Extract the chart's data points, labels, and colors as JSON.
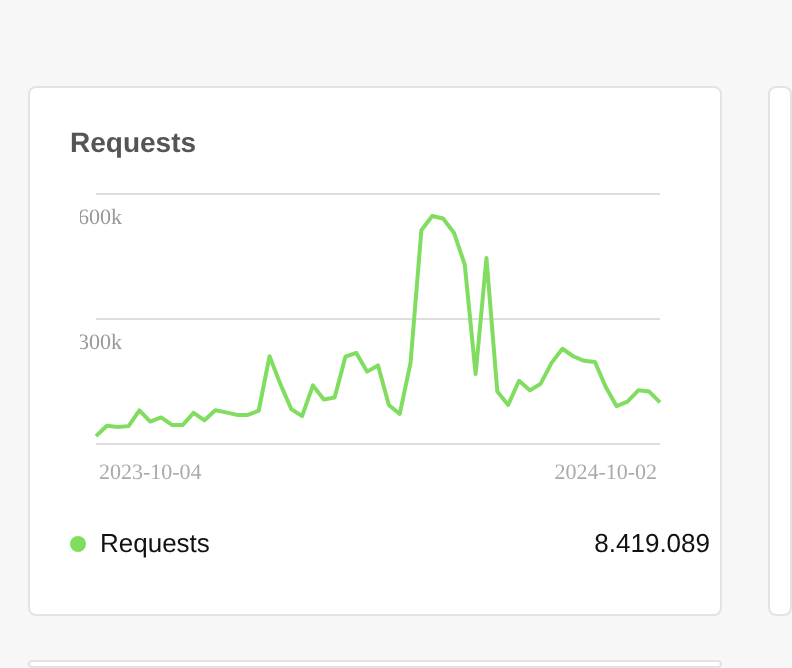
{
  "chart_data": {
    "type": "line",
    "title": "Requests",
    "categories": [
      null,
      null,
      null,
      null,
      null,
      "2023-10-04",
      null,
      null,
      null,
      null,
      null,
      null,
      null,
      null,
      null,
      null,
      null,
      null,
      null,
      null,
      null,
      null,
      null,
      null,
      null,
      null,
      null,
      null,
      null,
      null,
      null,
      null,
      null,
      null,
      null,
      null,
      null,
      null,
      null,
      null,
      null,
      null,
      null,
      null,
      null,
      null,
      null,
      "2024-10-02",
      null,
      null,
      null,
      null,
      null
    ],
    "series": [
      {
        "name": "Requests",
        "color": "#80dd60",
        "values": [
          18000,
          43000,
          40000,
          42000,
          80000,
          53000,
          63000,
          45000,
          45000,
          74000,
          56000,
          80000,
          75000,
          69000,
          69000,
          79000,
          210000,
          143000,
          83000,
          66000,
          140000,
          106000,
          111000,
          209000,
          218000,
          173000,
          188000,
          93000,
          71000,
          194000,
          513000,
          547000,
          541000,
          507000,
          430000,
          167000,
          446000,
          125000,
          93000,
          151000,
          128000,
          144000,
          194000,
          228000,
          210000,
          199000,
          196000,
          136000,
          90000,
          101000,
          128000,
          125000,
          99000
        ]
      }
    ],
    "ylim": [
      0,
      600000
    ],
    "yticks": [
      {
        "value": 0,
        "label": null
      },
      {
        "value": 300000,
        "label": "300k"
      },
      {
        "value": 600000,
        "label": "600k"
      }
    ],
    "grid": "y",
    "legend": "bottom",
    "marker": "none",
    "line_style": "solid",
    "annotations": [
      "8.419.089"
    ]
  }
}
